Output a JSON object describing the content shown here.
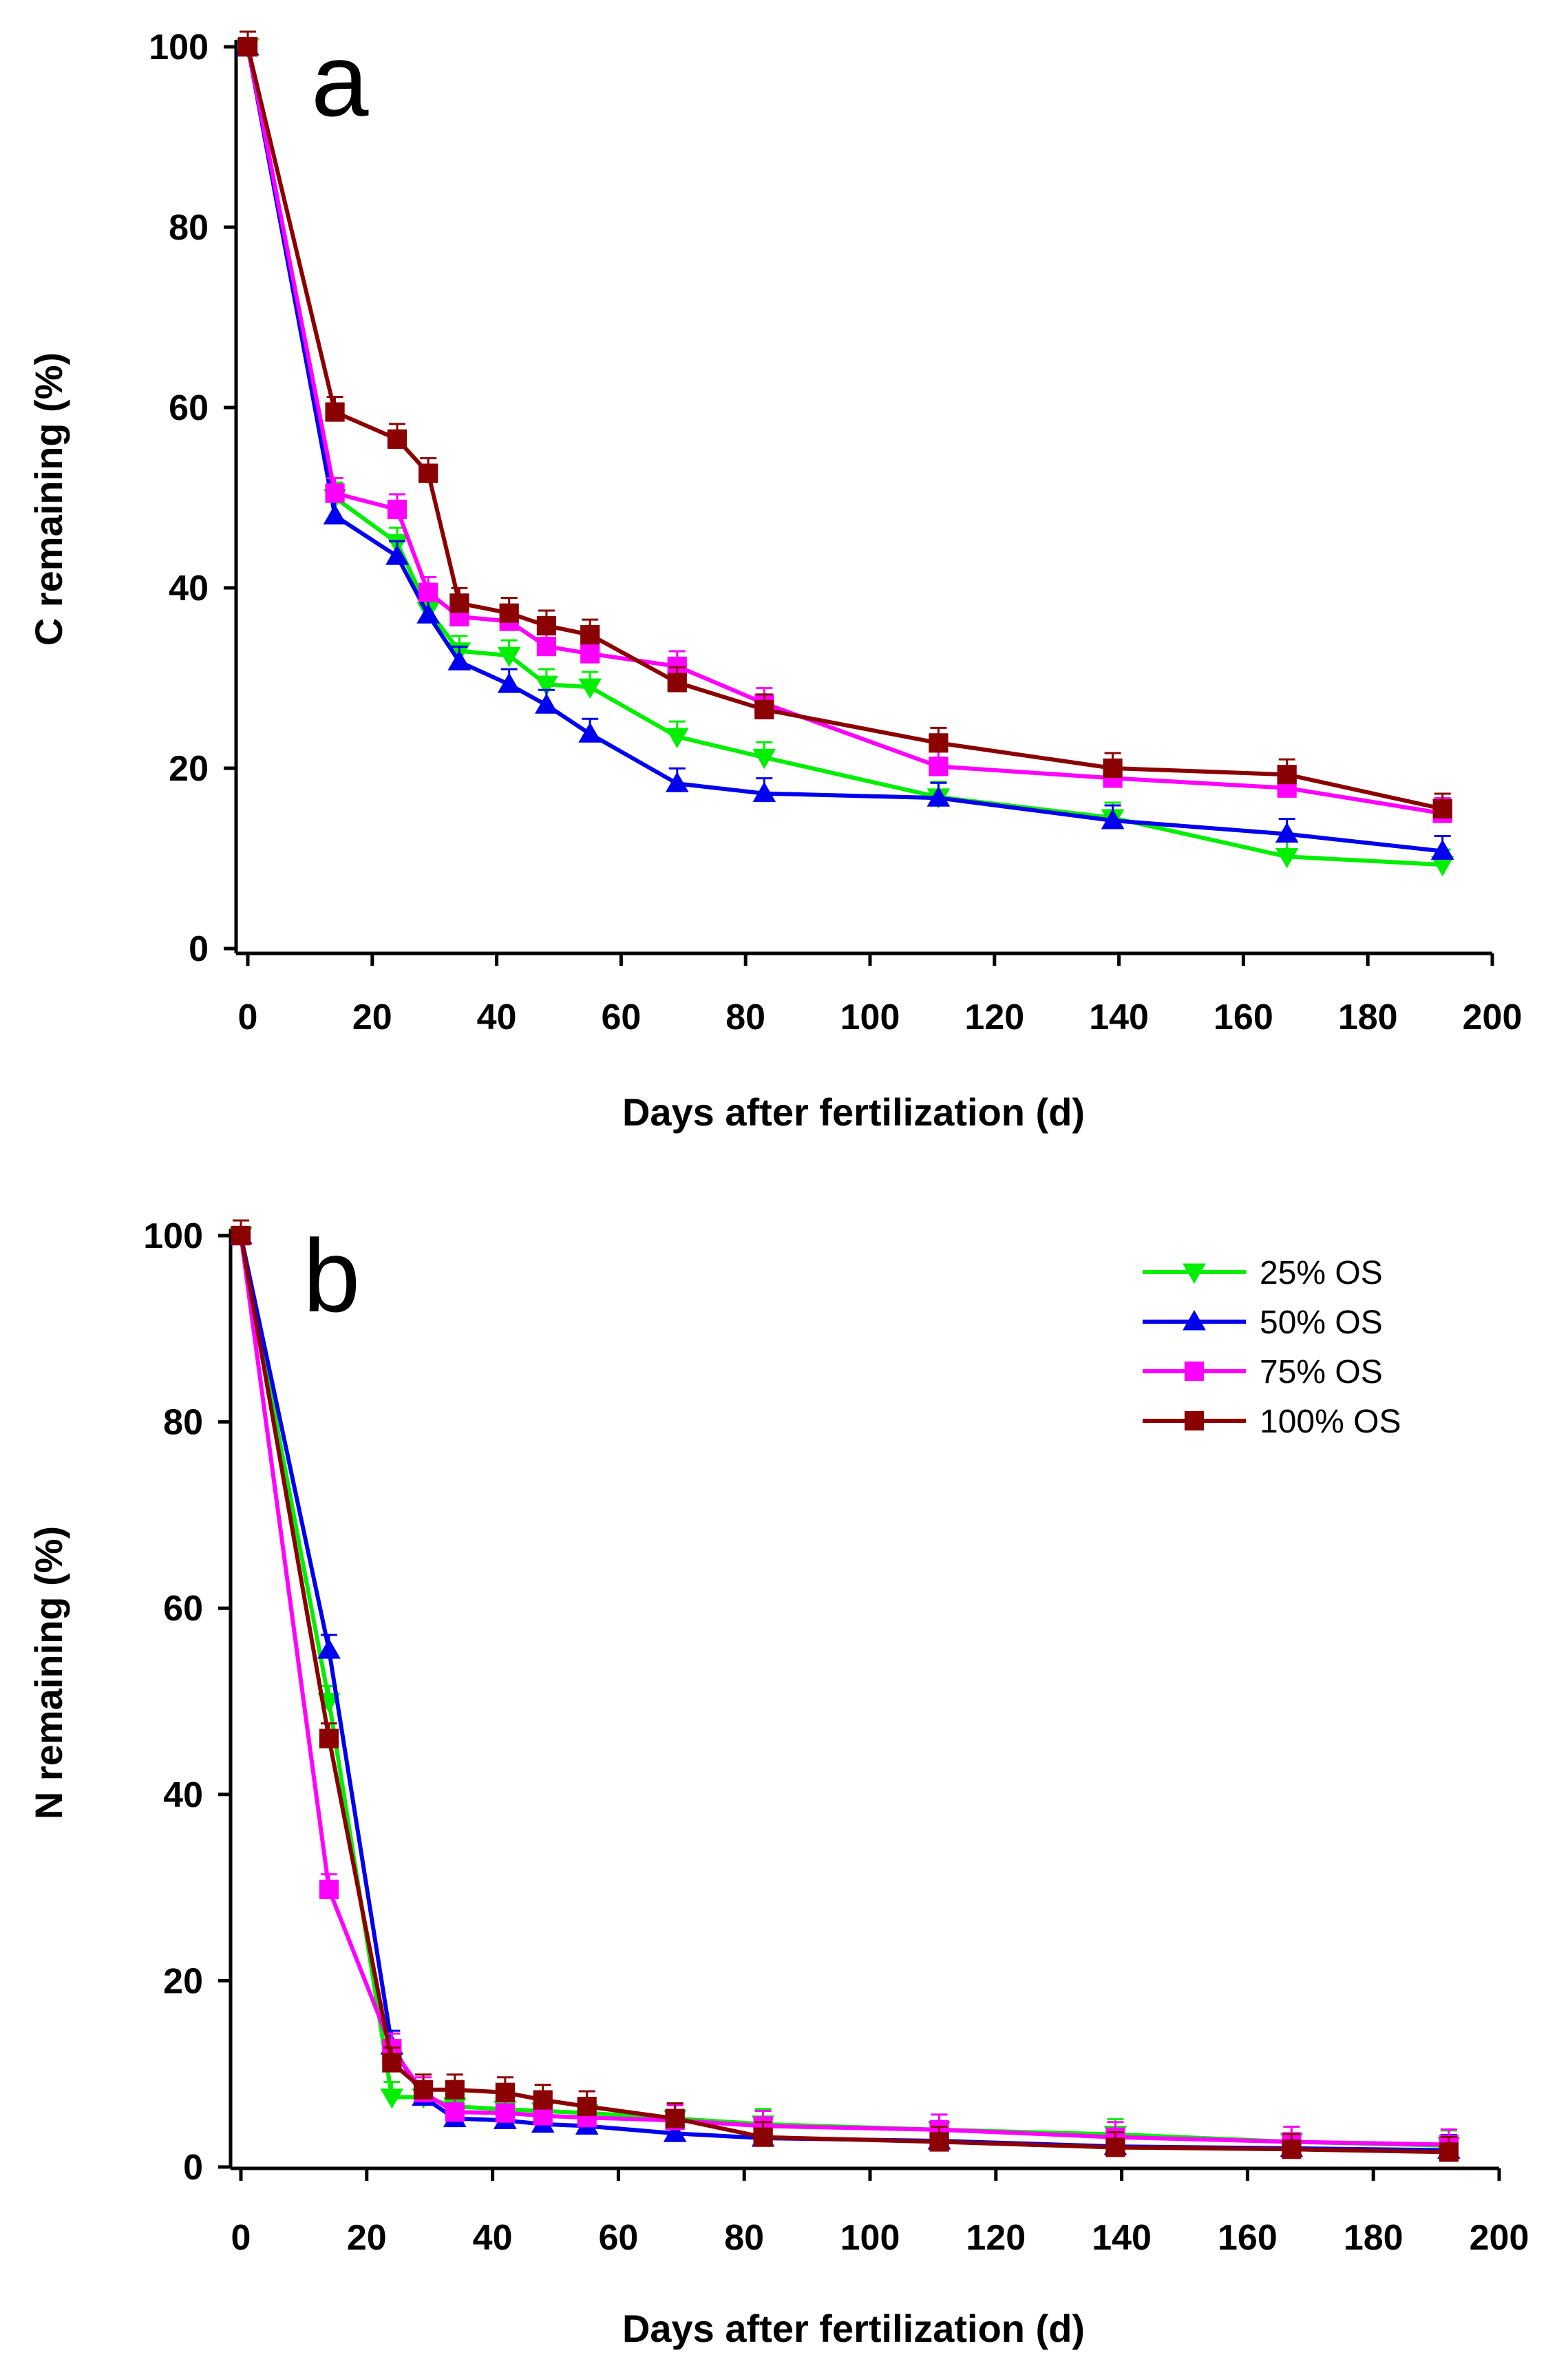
{
  "chart_data": [
    {
      "type": "line",
      "panel_label": "a",
      "xlabel": "Days after fertilization (d)",
      "ylabel": "C remaining (%)",
      "xlim": [
        0,
        200
      ],
      "ylim": [
        0,
        100
      ],
      "xticks": [
        "0",
        "20",
        "40",
        "60",
        "80",
        "100",
        "120",
        "140",
        "160",
        "180",
        "200"
      ],
      "yticks": [
        "0",
        "20",
        "40",
        "60",
        "80",
        "100"
      ],
      "grid": false,
      "series": [
        {
          "name": "25% OS",
          "color": "#00ee00",
          "marker": "triangle-down",
          "x": [
            0,
            14,
            24,
            29,
            34,
            42,
            48,
            55,
            69,
            83,
            111,
            139,
            167,
            192
          ],
          "y": [
            100,
            50,
            45,
            37.5,
            33,
            32.5,
            29.3,
            29,
            23.5,
            21.2,
            16.8,
            14.5,
            10.2,
            9.3
          ]
        },
        {
          "name": "50% OS",
          "color": "#0000ee",
          "marker": "triangle-up",
          "x": [
            0,
            14,
            24,
            29,
            34,
            42,
            48,
            55,
            69,
            83,
            111,
            139,
            167,
            192
          ],
          "y": [
            100,
            48,
            43.5,
            37,
            31.8,
            29.3,
            27,
            23.8,
            18.3,
            17.2,
            16.7,
            14.2,
            12.7,
            10.8
          ]
        },
        {
          "name": "75% OS",
          "color": "#ff00ff",
          "marker": "square",
          "x": [
            0,
            14,
            24,
            29,
            34,
            42,
            48,
            55,
            69,
            83,
            111,
            139,
            167,
            192
          ],
          "y": [
            100,
            50.5,
            48.7,
            39.5,
            36.8,
            36.3,
            33.5,
            32.7,
            31.3,
            27.2,
            20.2,
            18.9,
            17.8,
            15
          ]
        },
        {
          "name": "100% OS",
          "color": "#8b0000",
          "marker": "square",
          "x": [
            0,
            14,
            24,
            29,
            34,
            42,
            48,
            55,
            69,
            83,
            111,
            139,
            167,
            192
          ],
          "y": [
            100,
            59.5,
            56.5,
            52.7,
            38.3,
            37.2,
            35.8,
            34.8,
            29.5,
            26.5,
            22.8,
            20,
            19.3,
            15.5
          ]
        }
      ]
    },
    {
      "type": "line",
      "panel_label": "b",
      "xlabel": "Days after fertilization (d)",
      "ylabel": "N remaining (%)",
      "xlim": [
        0,
        200
      ],
      "ylim": [
        0,
        100
      ],
      "xticks": [
        "0",
        "20",
        "40",
        "60",
        "80",
        "100",
        "120",
        "140",
        "160",
        "180",
        "200"
      ],
      "yticks": [
        "0",
        "20",
        "40",
        "60",
        "80",
        "100"
      ],
      "grid": false,
      "legend": {
        "position": "top-right",
        "entries": [
          "25% OS",
          "50% OS",
          "75% OS",
          "100% OS"
        ]
      },
      "series": [
        {
          "name": "25% OS",
          "color": "#00ee00",
          "marker": "triangle-down",
          "x": [
            0,
            14,
            24,
            29,
            34,
            42,
            48,
            55,
            69,
            83,
            111,
            139,
            167,
            192
          ],
          "y": [
            100,
            50,
            7.5,
            7.5,
            6.5,
            6.2,
            6,
            5.8,
            5.2,
            4.6,
            4,
            3.5,
            2.7,
            2.3
          ]
        },
        {
          "name": "50% OS",
          "color": "#0000ee",
          "marker": "triangle-up",
          "x": [
            0,
            14,
            24,
            29,
            34,
            42,
            48,
            55,
            69,
            83,
            111,
            139,
            167,
            192
          ],
          "y": [
            100,
            55.5,
            13,
            7.5,
            5.2,
            5,
            4.6,
            4.4,
            3.6,
            3.1,
            2.8,
            2.2,
            2,
            1.8
          ]
        },
        {
          "name": "75% OS",
          "color": "#ff00ff",
          "marker": "square",
          "x": [
            0,
            14,
            24,
            29,
            34,
            42,
            48,
            55,
            69,
            83,
            111,
            139,
            167,
            192
          ],
          "y": [
            100,
            29.8,
            12.7,
            8,
            5.9,
            5.8,
            5.5,
            5.3,
            5,
            4.4,
            4,
            3.2,
            2.7,
            2.4
          ]
        },
        {
          "name": "100% OS",
          "color": "#8b0000",
          "marker": "square",
          "x": [
            0,
            14,
            24,
            29,
            34,
            42,
            48,
            55,
            69,
            83,
            111,
            139,
            167,
            192
          ],
          "y": [
            100,
            46,
            11.2,
            8.3,
            8.3,
            8,
            7.2,
            6.5,
            5.2,
            3.2,
            2.7,
            2.1,
            1.9,
            1.6
          ]
        }
      ]
    }
  ]
}
